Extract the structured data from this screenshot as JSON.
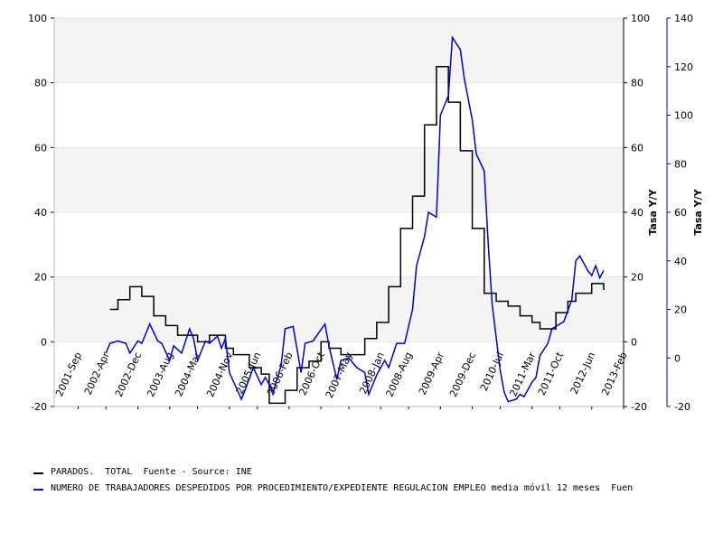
{
  "chart_data": {
    "type": "line",
    "xlim": [
      "2001-03",
      "2013-02"
    ],
    "xticks": [
      {
        "value": "2001-09",
        "label": "2001-Sep"
      },
      {
        "value": "2002-04",
        "label": "2002-Apr"
      },
      {
        "value": "2002-12",
        "label": "2002-Dec"
      },
      {
        "value": "2003-08",
        "label": "2003-Aug"
      },
      {
        "value": "2004-03",
        "label": "2004-Mar"
      },
      {
        "value": "2004-11",
        "label": "2004-Nov"
      },
      {
        "value": "2005-06",
        "label": "2005-Jun"
      },
      {
        "value": "2006-02",
        "label": "2006-Feb"
      },
      {
        "value": "2006-10",
        "label": "2006-Oct"
      },
      {
        "value": "2007-05",
        "label": "2007-May"
      },
      {
        "value": "2008-01",
        "label": "2008-Jan"
      },
      {
        "value": "2008-08",
        "label": "2008-Aug"
      },
      {
        "value": "2009-04",
        "label": "2009-Apr"
      },
      {
        "value": "2009-12",
        "label": "2009-Dec"
      },
      {
        "value": "2010-07",
        "label": "2010-Jul"
      },
      {
        "value": "2011-03",
        "label": "2011-Mar"
      },
      {
        "value": "2011-10",
        "label": "2011-Oct"
      },
      {
        "value": "2012-06",
        "label": "2012-Jun"
      },
      {
        "value": "2013-02",
        "label": "2013-Feb"
      }
    ],
    "ylim": [
      -20,
      100
    ],
    "yticks": [
      -20,
      0,
      20,
      40,
      60,
      80,
      100
    ],
    "y2lim": [
      -20,
      100
    ],
    "y2ticks": [
      -20,
      0,
      20,
      40,
      60,
      80,
      100
    ],
    "y2label": "Tasa Y/Y",
    "y3lim": [
      -20,
      140
    ],
    "y3ticks": [
      -20,
      0,
      20,
      40,
      60,
      80,
      100,
      120,
      140
    ],
    "y3label": "Tasa Y/Y",
    "y3color": "#0000cc",
    "grid": true,
    "bands": true,
    "series": [
      {
        "name": "PARADOS.  TOTAL  Fuente - Source: INE",
        "color": "#000000",
        "axis": "y",
        "step": true,
        "x": [
          "2002-05",
          "2002-07",
          "2002-10",
          "2003-01",
          "2003-04",
          "2003-07",
          "2003-10",
          "2004-03",
          "2004-06",
          "2004-10",
          "2004-12",
          "2005-04",
          "2005-07",
          "2005-09",
          "2006-01",
          "2006-04",
          "2006-07",
          "2006-10",
          "2006-12",
          "2007-03",
          "2007-09",
          "2007-12",
          "2008-03",
          "2008-06",
          "2008-09",
          "2008-12",
          "2009-03",
          "2009-06",
          "2009-09",
          "2009-12",
          "2010-03",
          "2010-06",
          "2010-09",
          "2010-12",
          "2011-03",
          "2011-05",
          "2011-09",
          "2011-12",
          "2012-02",
          "2012-06",
          "2012-09"
        ],
        "values": [
          10,
          13,
          17,
          14,
          8,
          5,
          2,
          0,
          2,
          -2,
          -4,
          -8,
          -10,
          -19,
          -15,
          -8,
          -6,
          0,
          -2,
          -4,
          1,
          6,
          17,
          35,
          45,
          67,
          85,
          74,
          59,
          35,
          15,
          12.5,
          11,
          8,
          6,
          4,
          9,
          12.5,
          15,
          18,
          16
        ]
      },
      {
        "name": "NUMERO DE TRABAJADORES DESPEDIDOS POR PROCEDIMIENTO/EXPEDIENTE REGULACION EMPLEO media móvil 12 meses  Fuen",
        "color": "#0000cc",
        "axis": "y3",
        "x": [
          "2002-04",
          "2002-05",
          "2002-07",
          "2002-09",
          "2002-10",
          "2002-12",
          "2003-01",
          "2003-03",
          "2003-05",
          "2003-06",
          "2003-08",
          "2003-09",
          "2003-11",
          "2004-01",
          "2004-02",
          "2004-03",
          "2004-05",
          "2004-06",
          "2004-08",
          "2004-09",
          "2004-10",
          "2004-11",
          "2005-02",
          "2005-03",
          "2005-05",
          "2005-07",
          "2005-08",
          "2005-10",
          "2005-12",
          "2006-01",
          "2006-03",
          "2006-05",
          "2006-06",
          "2006-08",
          "2006-11",
          "2006-12",
          "2007-02",
          "2007-03",
          "2007-05",
          "2007-07",
          "2007-09",
          "2007-10",
          "2007-12",
          "2008-02",
          "2008-03",
          "2008-05",
          "2008-07",
          "2008-09",
          "2008-10",
          "2008-12",
          "2009-01",
          "2009-03",
          "2009-04",
          "2009-06",
          "2009-07",
          "2009-09",
          "2009-10",
          "2009-12",
          "2010-01",
          "2010-03",
          "2010-04",
          "2010-05",
          "2010-07",
          "2010-08",
          "2010-09",
          "2010-11",
          "2010-12",
          "2011-01",
          "2011-03",
          "2011-04",
          "2011-05",
          "2011-07",
          "2011-08",
          "2011-10",
          "2011-11",
          "2012-01",
          "2012-02",
          "2012-03",
          "2012-05",
          "2012-06",
          "2012-07",
          "2012-08",
          "2012-09"
        ],
        "values": [
          2,
          6,
          7,
          6,
          2,
          7,
          6,
          14,
          7,
          6,
          -1,
          5,
          2,
          12,
          8,
          -1,
          7,
          6,
          9,
          4,
          8,
          -6,
          -17,
          -13,
          -4,
          -11,
          -8,
          -14,
          -3,
          12,
          13,
          -6,
          6,
          7,
          14,
          5,
          -9,
          -1,
          0,
          -4,
          -6,
          -15,
          -7,
          -1,
          -4,
          6,
          6,
          20,
          38,
          50,
          60,
          58,
          100,
          108,
          132,
          127,
          115,
          98,
          84,
          77,
          47,
          22,
          -5,
          -14,
          -18,
          -17,
          -15,
          -16,
          -10,
          -8,
          1,
          6,
          12,
          14,
          15,
          24,
          40,
          42,
          36,
          34,
          38,
          33,
          36
        ]
      }
    ]
  }
}
